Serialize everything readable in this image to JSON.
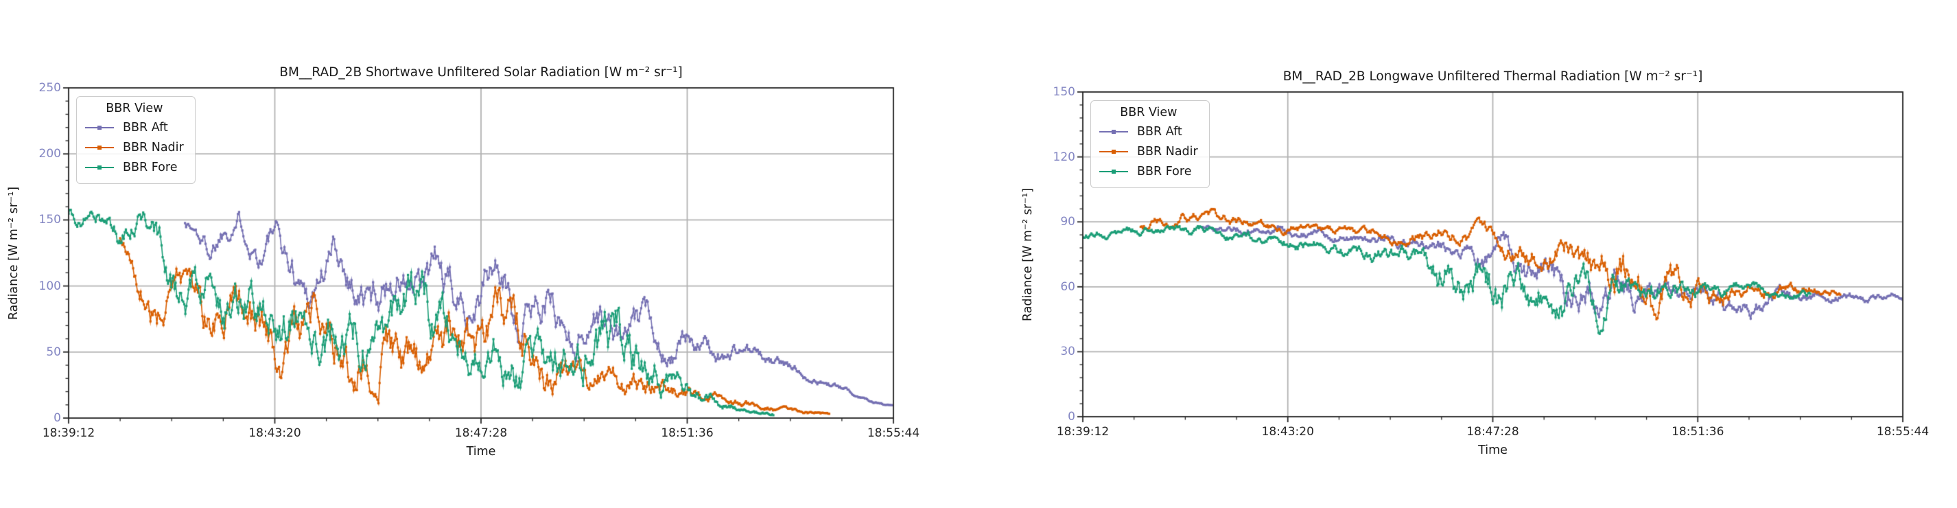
{
  "figure": {
    "background": "#ffffff",
    "grid_color": "#b3b3b3",
    "spine_color": "#262626",
    "xtick_label_color": "#262626",
    "ytick_label_color": "#8487c3"
  },
  "chart_data": [
    {
      "type": "line",
      "title": "BM__RAD_2B Shortwave Unfiltered Solar Radiation [W m⁻² sr⁻¹]",
      "xlabel": "Time",
      "ylabel": "Radiance [W m⁻² sr⁻¹]",
      "grid": true,
      "legend": {
        "title": "BBR View",
        "position": "upper-left"
      },
      "ylim": [
        0,
        250
      ],
      "yticks": [
        0,
        50,
        100,
        150,
        200,
        250
      ],
      "y_minor_step": 10,
      "xlim_seconds": [
        0,
        992
      ],
      "xtick_seconds": [
        0,
        248,
        496,
        744,
        992
      ],
      "xtick_labels": [
        "18:39:12",
        "18:43:20",
        "18:47:28",
        "18:51:36",
        "18:55:44"
      ],
      "x_minor_step_seconds": 62,
      "series": [
        {
          "name": "BBR Aft",
          "color": "#7570b3",
          "t": [
            140,
            155,
            170,
            185,
            200,
            215,
            230,
            245,
            260,
            275,
            290,
            305,
            320,
            335,
            350,
            365,
            380,
            395,
            410,
            425,
            440,
            455,
            470,
            485,
            500,
            515,
            530,
            545,
            560,
            575,
            590,
            605,
            620,
            635,
            650,
            665,
            680,
            695,
            710,
            725,
            740,
            755,
            770,
            785,
            800,
            815,
            830,
            845,
            860,
            875,
            890,
            905,
            920,
            935,
            950,
            965,
            980,
            992
          ],
          "v": [
            150,
            140,
            128,
            145,
            158,
            148,
            132,
            142,
            122,
            105,
            95,
            112,
            128,
            115,
            98,
            88,
            102,
            112,
            100,
            88,
            112,
            92,
            78,
            92,
            108,
            115,
            92,
            72,
            88,
            98,
            78,
            62,
            72,
            85,
            70,
            58,
            66,
            72,
            60,
            52,
            56,
            60,
            52,
            47,
            50,
            53,
            46,
            42,
            40,
            36,
            32,
            28,
            25,
            21,
            17,
            14,
            11,
            9
          ],
          "jitter": [
            5,
            6,
            7,
            7,
            8,
            8,
            9,
            9,
            10,
            10,
            10,
            11,
            11,
            11,
            12,
            12,
            12,
            12,
            12,
            12,
            13,
            13,
            13,
            13,
            13,
            13,
            12,
            12,
            12,
            12,
            11,
            11,
            11,
            10,
            10,
            9,
            9,
            8,
            8,
            7,
            7,
            6,
            6,
            5,
            5,
            4,
            4,
            3,
            3,
            2.5,
            2,
            2,
            1.5,
            1.2,
            1,
            0.8,
            0.6,
            0.5
          ]
        },
        {
          "name": "BBR Nadir",
          "color": "#d95f02",
          "t": [
            62,
            75,
            90,
            105,
            120,
            135,
            150,
            165,
            180,
            200,
            220,
            240,
            260,
            280,
            300,
            320,
            340,
            360,
            380,
            400,
            420,
            440,
            460,
            480,
            500,
            520,
            540,
            560,
            580,
            600,
            620,
            640,
            660,
            680,
            700,
            720,
            740,
            760,
            780,
            800,
            820,
            840,
            860,
            880,
            900,
            916
          ],
          "v": [
            136,
            125,
            100,
            80,
            92,
            96,
            82,
            70,
            85,
            90,
            68,
            48,
            35,
            55,
            75,
            60,
            42,
            55,
            70,
            45,
            28,
            35,
            55,
            45,
            60,
            75,
            55,
            38,
            30,
            28,
            28,
            26,
            30,
            24,
            20,
            18,
            16,
            14,
            13,
            12,
            10,
            8,
            6,
            5,
            4,
            3
          ],
          "jitter": [
            5,
            7,
            9,
            10,
            10,
            10,
            11,
            12,
            12,
            13,
            14,
            14,
            14,
            14,
            14,
            15,
            15,
            15,
            15,
            14,
            13,
            13,
            14,
            15,
            16,
            16,
            14,
            12,
            10,
            9,
            8,
            8,
            8,
            7,
            6,
            5,
            4,
            3,
            2.5,
            2,
            1.8,
            1.5,
            1.2,
            1,
            0.8,
            0.6
          ]
        },
        {
          "name": "BBR Fore",
          "color": "#1b9e77",
          "t": [
            0,
            15,
            30,
            45,
            60,
            75,
            90,
            105,
            120,
            140,
            160,
            180,
            200,
            220,
            240,
            260,
            280,
            300,
            320,
            340,
            360,
            380,
            400,
            420,
            440,
            460,
            480,
            500,
            520,
            540,
            560,
            580,
            600,
            620,
            640,
            660,
            680,
            700,
            720,
            740,
            760,
            775,
            790,
            805,
            820,
            835,
            848
          ],
          "v": [
            157,
            152,
            147,
            150,
            135,
            148,
            155,
            135,
            108,
            85,
            100,
            85,
            95,
            100,
            70,
            75,
            85,
            60,
            65,
            85,
            60,
            45,
            75,
            95,
            70,
            45,
            55,
            42,
            50,
            40,
            45,
            38,
            42,
            55,
            45,
            60,
            45,
            35,
            25,
            20,
            15,
            12,
            10,
            8,
            6,
            4,
            3
          ],
          "jitter": [
            4,
            5,
            5,
            6,
            6,
            6,
            7,
            9,
            11,
            12,
            13,
            14,
            13,
            14,
            15,
            16,
            15,
            16,
            17,
            16,
            17,
            16,
            16,
            15,
            16,
            15,
            14,
            13,
            13,
            12,
            12,
            12,
            13,
            14,
            15,
            16,
            15,
            12,
            8,
            6,
            4,
            3,
            2,
            1.5,
            1.2,
            1,
            0.8
          ]
        }
      ]
    },
    {
      "type": "line",
      "title": "BM__RAD_2B Longwave Unfiltered Thermal Radiation [W m⁻² sr⁻¹]",
      "xlabel": "Time",
      "ylabel": "Radiance [W m⁻² sr⁻¹]",
      "grid": true,
      "legend": {
        "title": "BBR View",
        "position": "upper-left"
      },
      "ylim": [
        0,
        150
      ],
      "yticks": [
        0,
        30,
        60,
        90,
        120,
        150
      ],
      "y_minor_step": 6,
      "xlim_seconds": [
        0,
        992
      ],
      "xtick_seconds": [
        0,
        248,
        496,
        744,
        992
      ],
      "xtick_labels": [
        "18:39:12",
        "18:43:20",
        "18:47:28",
        "18:51:36",
        "18:55:44"
      ],
      "x_minor_step_seconds": 62,
      "series": [
        {
          "name": "BBR Aft",
          "color": "#7570b3",
          "t": [
            145,
            165,
            185,
            205,
            225,
            245,
            265,
            285,
            305,
            325,
            345,
            365,
            385,
            405,
            425,
            445,
            465,
            485,
            505,
            525,
            545,
            565,
            585,
            605,
            625,
            645,
            665,
            685,
            705,
            725,
            745,
            765,
            785,
            805,
            825,
            845,
            865,
            885,
            905,
            925,
            945,
            965,
            992
          ],
          "v": [
            87,
            86.5,
            87,
            86,
            85.5,
            85,
            84.5,
            84,
            83.5,
            83,
            82.5,
            82,
            81,
            80,
            79,
            78,
            76,
            72,
            76,
            70,
            66,
            72,
            60,
            66,
            58,
            64,
            56,
            62,
            60,
            58,
            60,
            57,
            55,
            52,
            50,
            54,
            56,
            55,
            54,
            56,
            55,
            55.5,
            55
          ],
          "jitter": [
            1.3,
            1.3,
            1.4,
            1.4,
            1.4,
            1.5,
            1.5,
            1.5,
            1.5,
            1.6,
            1.6,
            1.7,
            1.8,
            2,
            2.2,
            2.5,
            3,
            4,
            4,
            5,
            5.5,
            6,
            6.5,
            6,
            6,
            5.5,
            5,
            4.5,
            4,
            3.5,
            3,
            3,
            3,
            3,
            2.8,
            2.5,
            2,
            1.8,
            1.5,
            1.4,
            1.3,
            1.2,
            1.2
          ]
        },
        {
          "name": "BBR Nadir",
          "color": "#d95f02",
          "t": [
            70,
            90,
            110,
            130,
            150,
            170,
            190,
            210,
            230,
            250,
            270,
            290,
            310,
            330,
            350,
            370,
            390,
            410,
            430,
            450,
            470,
            490,
            510,
            530,
            550,
            570,
            590,
            610,
            630,
            650,
            670,
            690,
            710,
            730,
            750,
            770,
            790,
            810,
            830,
            850,
            870,
            890,
            917
          ],
          "v": [
            88,
            90,
            92,
            93.5,
            92,
            91,
            90,
            89,
            88.5,
            88,
            87,
            86,
            86,
            85,
            84.5,
            84,
            83.5,
            85,
            86,
            84,
            83,
            82,
            80,
            78,
            75,
            72,
            76,
            68,
            62,
            70,
            58,
            54,
            66,
            60,
            57,
            60,
            57,
            60,
            58,
            60,
            59,
            58,
            58
          ],
          "jitter": [
            1.5,
            1.6,
            1.8,
            2,
            1.8,
            1.7,
            1.6,
            1.6,
            1.5,
            1.5,
            1.5,
            1.5,
            1.6,
            1.6,
            1.7,
            1.8,
            2,
            2.2,
            2.4,
            2.5,
            2.6,
            2.8,
            3,
            3.5,
            4,
            4.5,
            5,
            6,
            7,
            6.5,
            7,
            6,
            5,
            4.5,
            4,
            3.5,
            3,
            2.5,
            2.2,
            2,
            1.8,
            1.5,
            1.3
          ]
        },
        {
          "name": "BBR Fore",
          "color": "#1b9e77",
          "t": [
            0,
            20,
            40,
            60,
            80,
            100,
            120,
            140,
            160,
            180,
            200,
            220,
            240,
            260,
            280,
            300,
            320,
            340,
            360,
            380,
            400,
            415,
            430,
            445,
            460,
            475,
            490,
            505,
            520,
            535,
            550,
            565,
            580,
            595,
            610,
            625,
            640,
            655,
            670,
            685,
            700,
            715,
            730,
            745,
            760,
            775,
            790,
            805,
            820,
            840,
            860,
            881
          ],
          "v": [
            84,
            85,
            85.5,
            86,
            86.5,
            86,
            85.5,
            85,
            84.5,
            84,
            83,
            82,
            81,
            80,
            79,
            78,
            76.5,
            75,
            73.5,
            74,
            76,
            72,
            62,
            70,
            55,
            68,
            60,
            52,
            65,
            58,
            50,
            62,
            55,
            65,
            58,
            52,
            62,
            56,
            60,
            58,
            60,
            58,
            57,
            59,
            57,
            58,
            59,
            58,
            57,
            57.5,
            57,
            57
          ],
          "jitter": [
            1.3,
            1.4,
            1.4,
            1.5,
            1.5,
            1.5,
            1.5,
            1.5,
            1.5,
            1.5,
            1.6,
            1.6,
            1.7,
            1.8,
            2,
            2,
            2.2,
            2.4,
            2.6,
            2.8,
            3,
            4,
            6,
            5,
            7,
            6,
            7,
            7,
            6,
            6,
            7,
            6,
            6,
            5,
            6,
            6,
            5,
            5,
            4,
            4,
            3,
            3,
            2.5,
            2.5,
            2,
            2,
            1.8,
            1.8,
            1.6,
            1.5,
            1.4,
            1.3
          ]
        }
      ]
    }
  ]
}
